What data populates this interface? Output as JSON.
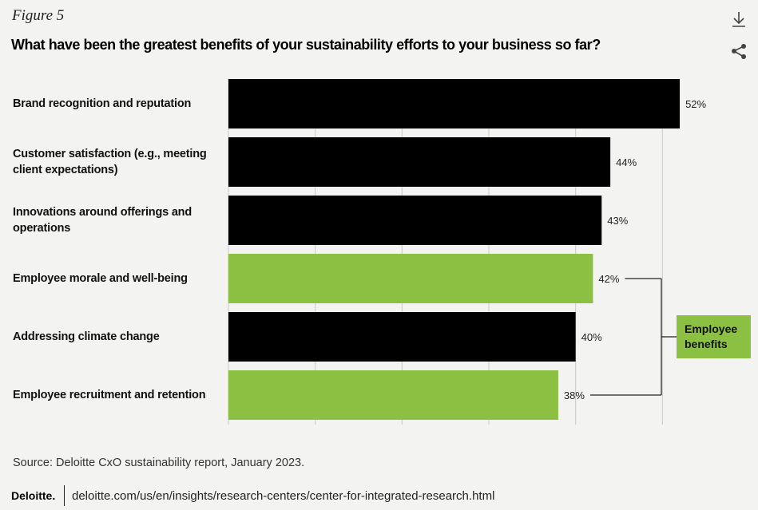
{
  "figure_label": "Figure 5",
  "chart_data": {
    "type": "hbar",
    "title": "What have been the greatest benefits of your sustainability efforts to your business so far?",
    "categories": [
      "Brand recognition and reputation",
      "Customer satisfaction (e.g., meeting client expectations)",
      "Innovations around offerings and operations",
      "Employee morale and well-being",
      "Addressing climate change",
      "Employee recruitment and retention"
    ],
    "values": [
      52,
      44,
      43,
      42,
      40,
      38
    ],
    "value_labels": [
      "52%",
      "44%",
      "43%",
      "42%",
      "40%",
      "38%"
    ],
    "colors": [
      "#000000",
      "#000000",
      "#000000",
      "#8cc043",
      "#000000",
      "#8cc043"
    ],
    "xlim": [
      0,
      60
    ],
    "xticks": [
      0,
      10,
      20,
      30,
      40,
      50
    ],
    "grid": true,
    "annotation": {
      "text": "Employee benefits",
      "color": "#8cc043"
    }
  },
  "source": "Source: Deloitte CxO sustainability report, January 2023.",
  "footer": {
    "brand": "Deloitte.",
    "url": "deloitte.com/us/en/insights/research-centers/center-for-integrated-research.html"
  }
}
